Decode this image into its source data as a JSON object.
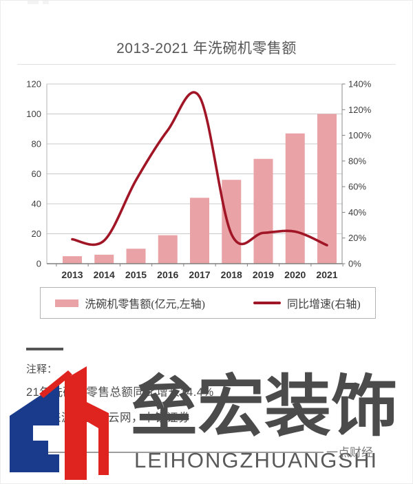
{
  "page": {
    "title": "2013-2021 年洗碗机零售额"
  },
  "chart_data": {
    "type": "bar+line",
    "title": "2013-2021 年洗碗机零售额",
    "categories": [
      "2013",
      "2014",
      "2015",
      "2016",
      "2017",
      "2018",
      "2019",
      "2020",
      "2021"
    ],
    "series": [
      {
        "name": "洗碗机零售额(亿元,左轴)",
        "type": "bar",
        "axis": "left",
        "color": "#e9a2a6",
        "values": [
          5,
          6,
          10,
          19,
          44,
          56,
          70,
          87,
          100
        ]
      },
      {
        "name": "同比增速(右轴)",
        "type": "line",
        "axis": "right",
        "color": "#a01626",
        "values": [
          19,
          18,
          65,
          104,
          130,
          23,
          24,
          25,
          14.4
        ]
      }
    ],
    "left_axis": {
      "min": 0,
      "max": 120,
      "step": 20,
      "tick_labels": [
        "0",
        "20",
        "40",
        "60",
        "80",
        "100",
        "120"
      ]
    },
    "right_axis": {
      "min": 0,
      "max": 140,
      "step": 20,
      "tick_labels": [
        "0%",
        "20%",
        "40%",
        "60%",
        "80%",
        "100%",
        "120%",
        "140%"
      ]
    },
    "grid": true,
    "legend_position": "bottom"
  },
  "legend": {
    "bar_label": "洗碗机零售额(亿元,左轴)",
    "line_label": "同比增速(右轴)"
  },
  "notes": {
    "heading": "注释：",
    "line1": "21年洗碗机零售总额同比增长14.4%",
    "line2": "数据来源：奥维云网，中银证券"
  },
  "watermark": {
    "brand_cn": "垒宏装饰",
    "brand_en": "LEIHONGZHUANGSHI",
    "source": "一点财经",
    "logo_blue": "#1a3a8c",
    "logo_red": "#df2420",
    "text_color": "#4b4b4b"
  }
}
